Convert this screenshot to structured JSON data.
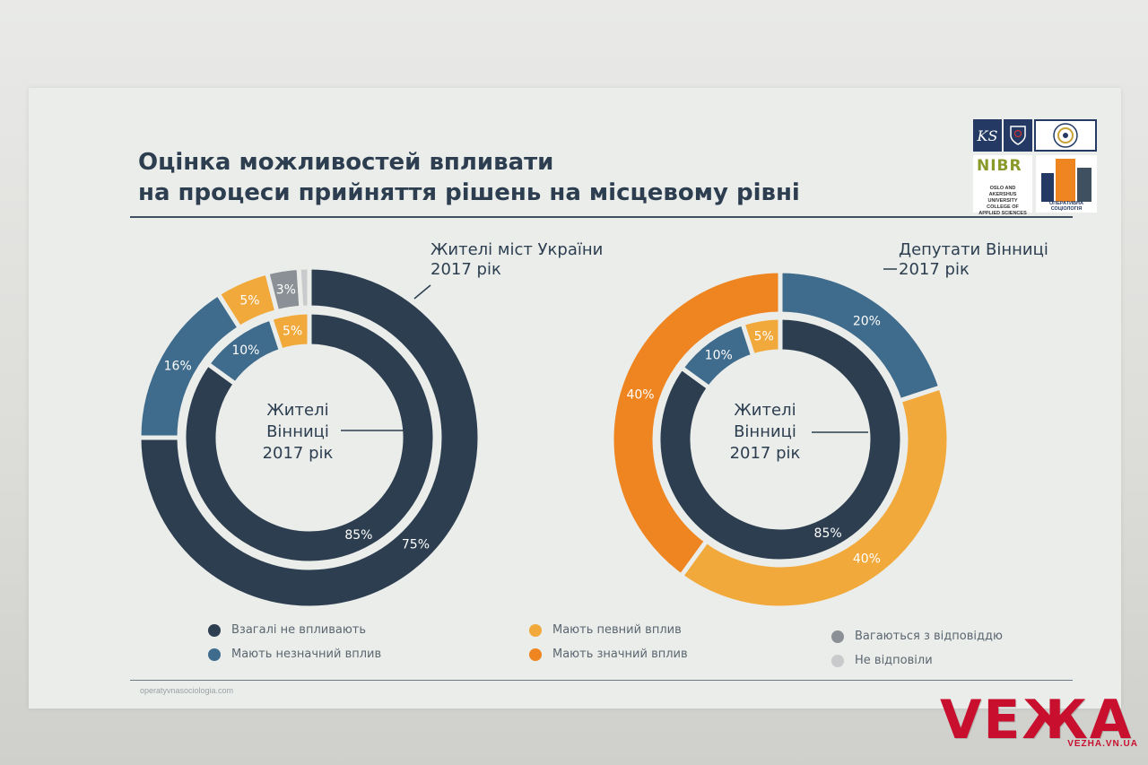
{
  "title_line1": "Оцінка можливостей впливати",
  "title_line2": "на процеси прийняття рішень на місцевому рівні",
  "logos": {
    "ks": "KS",
    "nibr": "NIBR",
    "nibr_sub": "OSLO AND AKERSHUS UNIVERSITY COLLEGE OF APPLIED SCIENCES",
    "sociology": "ОПЕРАТИВНА СОЦІОЛОГІЯ"
  },
  "source": "operatyvnasociologia.com",
  "watermark": {
    "brand": "VEЖA",
    "url": "VEZHA.VN.UA"
  },
  "colors": {
    "dark": "#2c3e50",
    "blue": "#3f6b8c",
    "yellow": "#f2a93b",
    "orange": "#ee8520",
    "gray": "#8a9095",
    "lightgray": "#c9cacb"
  },
  "chart_data": [
    {
      "type": "pie",
      "variant": "nested-donut",
      "center_label": [
        "Жителі",
        "Вінниці",
        "2017 рік"
      ],
      "outer_label": [
        "Жителі міст України",
        "2017 рік"
      ],
      "outer": [
        {
          "category": "Взагалі не впливають",
          "value": 75,
          "label": "75%"
        },
        {
          "category": "Мають незначний вплив",
          "value": 16,
          "label": "16%"
        },
        {
          "category": "Мають певний вплив",
          "value": 5,
          "label": "5%"
        },
        {
          "category": "Вагаються з відповіддю",
          "value": 3,
          "label": "3%"
        },
        {
          "category": "Не відповіли",
          "value": 1,
          "label": ""
        }
      ],
      "inner": [
        {
          "category": "Взагалі не впливають",
          "value": 85,
          "label": "85%"
        },
        {
          "category": "Мають незначний вплив",
          "value": 10,
          "label": "10%"
        },
        {
          "category": "Мають певний вплив",
          "value": 5,
          "label": "5%"
        }
      ]
    },
    {
      "type": "pie",
      "variant": "nested-donut",
      "center_label": [
        "Жителі",
        "Вінниці",
        "2017 рік"
      ],
      "outer_label": [
        "Депутати Вінниці",
        "2017 рік"
      ],
      "outer": [
        {
          "category": "Мають незначний вплив",
          "value": 20,
          "label": "20%"
        },
        {
          "category": "Мають певний вплив",
          "value": 40,
          "label": "40%"
        },
        {
          "category": "Мають значний вплив",
          "value": 40,
          "label": "40%"
        }
      ],
      "inner": [
        {
          "category": "Взагалі не впливають",
          "value": 85,
          "label": "85%"
        },
        {
          "category": "Мають незначний вплив",
          "value": 10,
          "label": "10%"
        },
        {
          "category": "Мають певний вплив",
          "value": 5,
          "label": "5%"
        }
      ]
    }
  ],
  "legend": [
    {
      "label": "Взагалі не впливають",
      "color_key": "dark"
    },
    {
      "label": "Мають незначний вплив",
      "color_key": "blue"
    },
    {
      "label": "Мають певний вплив",
      "color_key": "yellow"
    },
    {
      "label": "Мають значний вплив",
      "color_key": "orange"
    },
    {
      "label": "Вагаються з відповіддю",
      "color_key": "gray"
    },
    {
      "label": "Не відповіли",
      "color_key": "lightgray"
    }
  ]
}
